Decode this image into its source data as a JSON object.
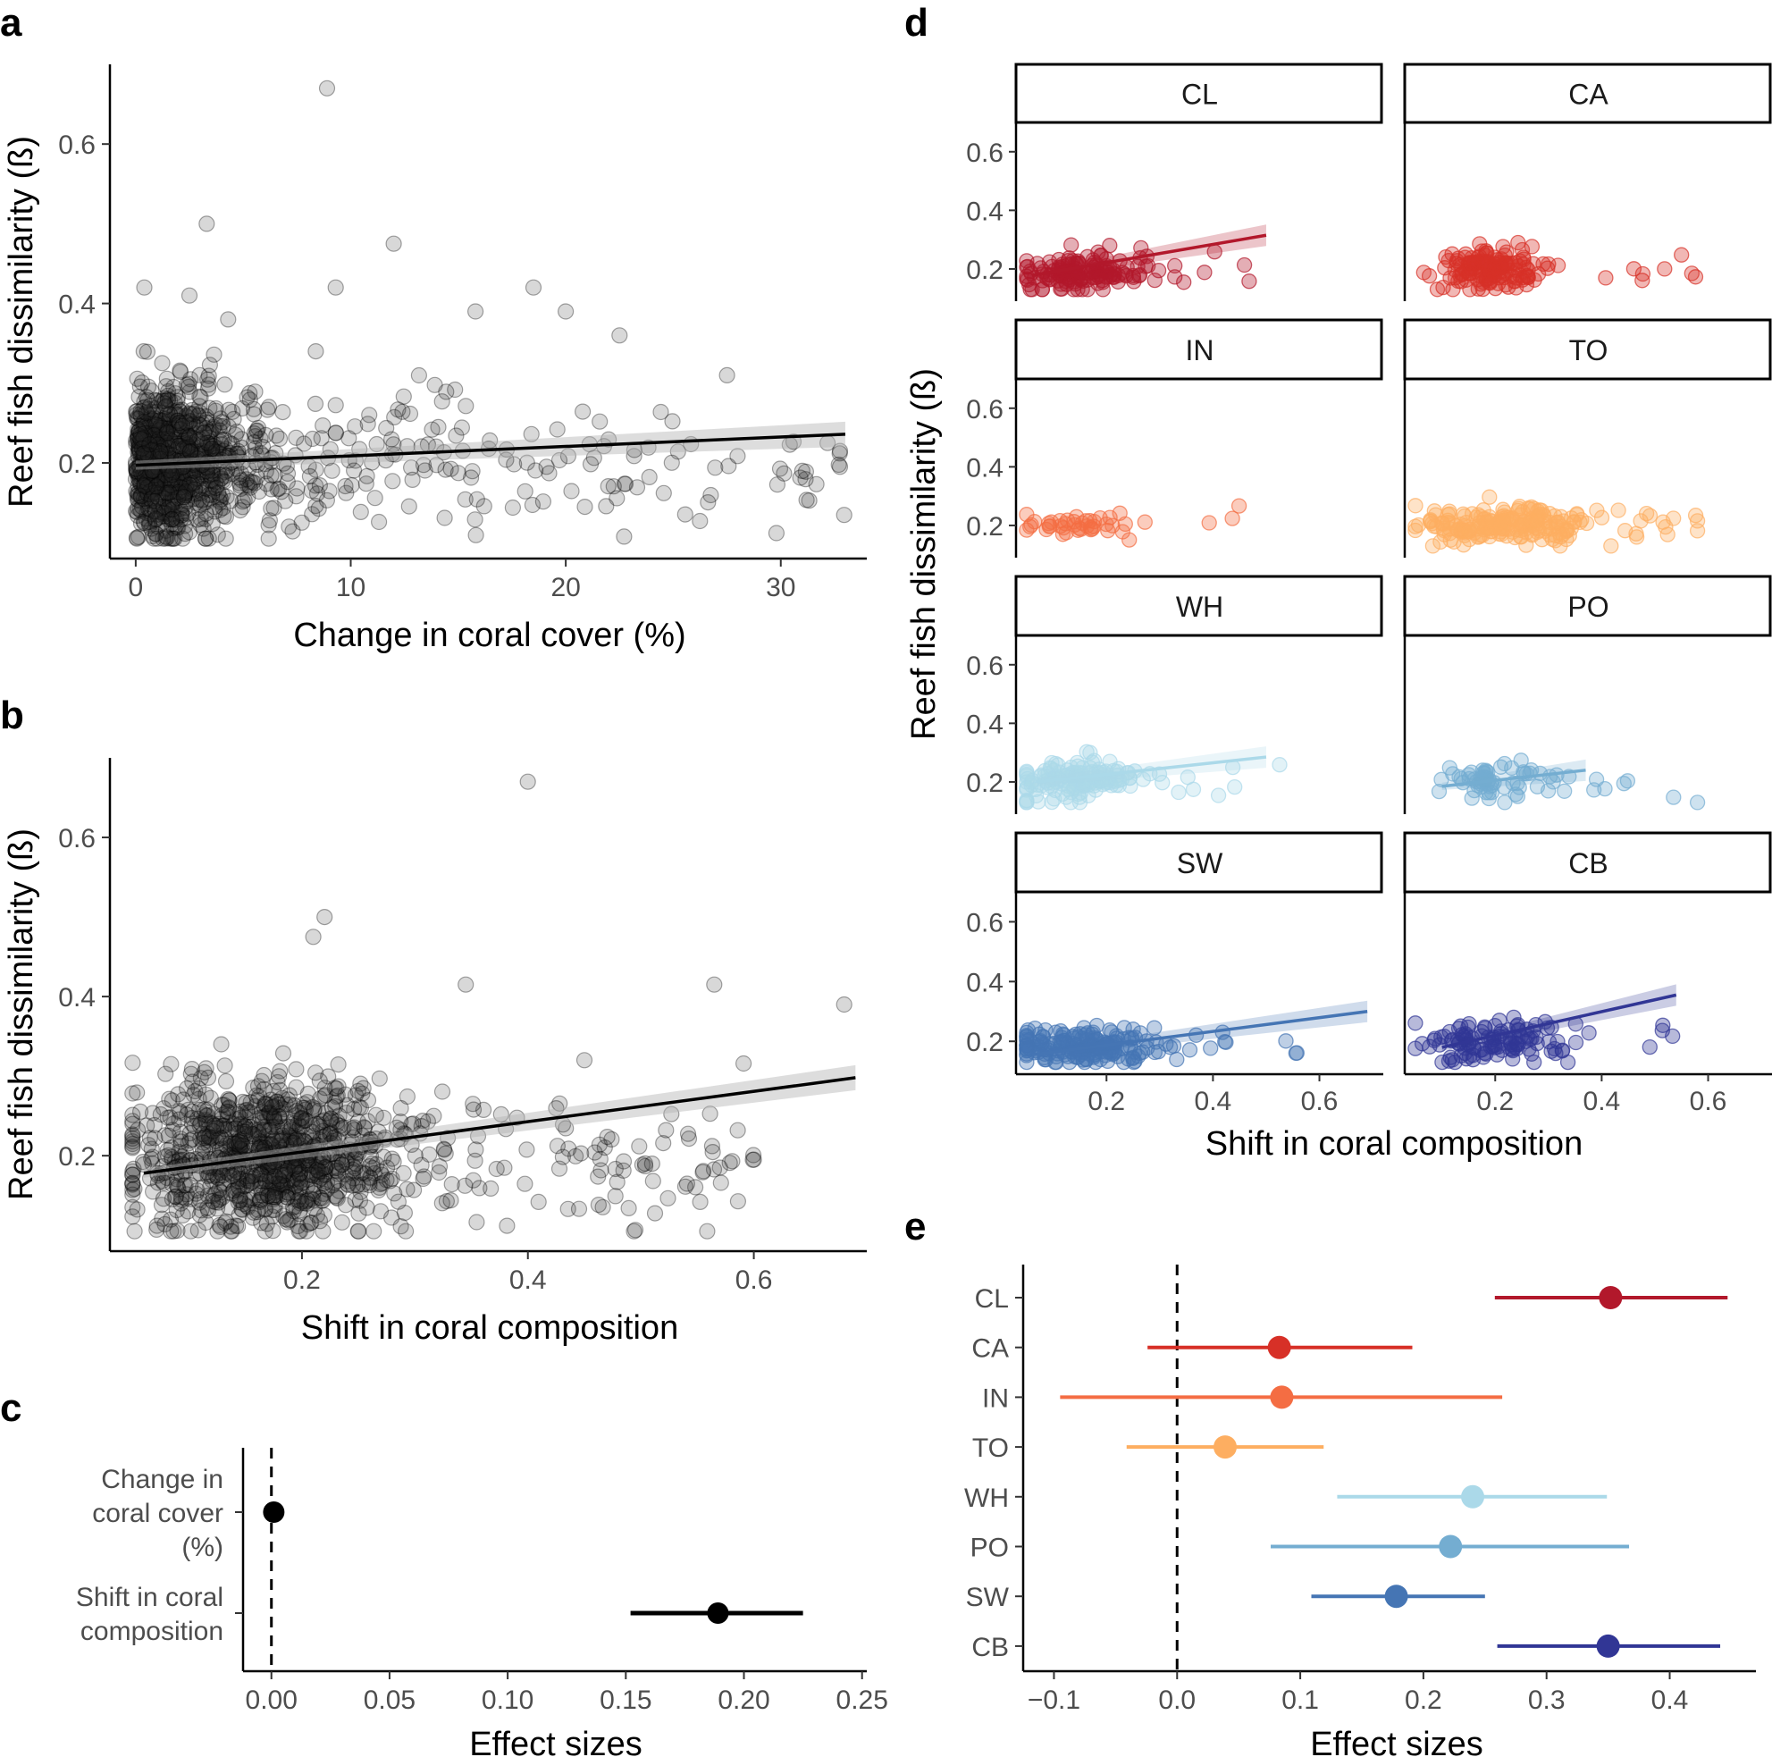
{
  "panels": {
    "a": {
      "label": "a",
      "xlabel": "Change in coral cover (%)",
      "ylabel": "Reef fish dissimilarity (ß)"
    },
    "b": {
      "label": "b",
      "xlabel": "Shift in coral composition",
      "ylabel": "Reef fish dissimilarity (ß)"
    },
    "c": {
      "label": "c",
      "xlabel": "Effect sizes"
    },
    "d": {
      "label": "d",
      "xlabel": "Shift in coral composition",
      "ylabel": "Reef fish dissimilarity (ß)"
    },
    "e": {
      "label": "e",
      "xlabel": "Effect sizes"
    }
  },
  "chart_data": [
    {
      "id": "a",
      "type": "scatter",
      "title": "a",
      "xlabel": "Change in coral cover (%)",
      "ylabel": "Reef fish dissimilarity (ß)",
      "xlim": [
        -1.2,
        34
      ],
      "ylim": [
        0.08,
        0.7
      ],
      "xticks": [
        0,
        10,
        20,
        30
      ],
      "yticks": [
        0.2,
        0.4,
        0.6
      ],
      "xtick_labels": [
        "0",
        "10",
        "20",
        "30"
      ],
      "ytick_labels": [
        "0.2",
        "0.4",
        "0.6"
      ],
      "points_seed": 11,
      "n_points": 1100,
      "x_distribution": "right-skewed, most 0-5%",
      "y_mean": 0.2,
      "y_sd": 0.045,
      "fit": {
        "x": [
          0,
          33
        ],
        "y": [
          0.197,
          0.236
        ]
      },
      "outliers": [
        [
          8.9,
          0.67
        ],
        [
          3.3,
          0.5
        ],
        [
          12,
          0.475
        ],
        [
          0.4,
          0.42
        ],
        [
          18.5,
          0.42
        ],
        [
          9.3,
          0.42
        ],
        [
          2.5,
          0.41
        ],
        [
          20,
          0.39
        ],
        [
          15.8,
          0.39
        ],
        [
          4.3,
          0.38
        ],
        [
          22.5,
          0.36
        ],
        [
          27.5,
          0.31
        ],
        [
          31,
          0.19
        ]
      ],
      "point_color": "#000000"
    },
    {
      "id": "b",
      "type": "scatter",
      "title": "b",
      "xlabel": "Shift in coral composition",
      "ylabel": "Reef fish dissimilarity (ß)",
      "xlim": [
        0.03,
        0.7
      ],
      "ylim": [
        0.08,
        0.7
      ],
      "xticks": [
        0.2,
        0.4,
        0.6
      ],
      "yticks": [
        0.2,
        0.4,
        0.6
      ],
      "xtick_labels": [
        "0.2",
        "0.4",
        "0.6"
      ],
      "ytick_labels": [
        "0.2",
        "0.4",
        "0.6"
      ],
      "points_seed": 23,
      "n_points": 1100,
      "x_mean": 0.17,
      "x_sd": 0.06,
      "y_mean": 0.2,
      "y_sd": 0.045,
      "fit": {
        "x": [
          0.06,
          0.69
        ],
        "y": [
          0.178,
          0.298
        ]
      },
      "outliers": [
        [
          0.4,
          0.67
        ],
        [
          0.22,
          0.5
        ],
        [
          0.21,
          0.475
        ],
        [
          0.565,
          0.415
        ],
        [
          0.345,
          0.415
        ],
        [
          0.68,
          0.39
        ],
        [
          0.45,
          0.32
        ],
        [
          0.6,
          0.195
        ],
        [
          0.51,
          0.19
        ],
        [
          0.57,
          0.185
        ]
      ],
      "point_color": "#000000"
    },
    {
      "id": "c",
      "type": "dot-errorbar",
      "title": "c",
      "xlabel": "Effect sizes",
      "xlim": [
        -0.012,
        0.252
      ],
      "xticks": [
        0.0,
        0.05,
        0.1,
        0.15,
        0.2,
        0.25
      ],
      "xtick_labels": [
        "0.00",
        "0.05",
        "0.10",
        "0.15",
        "0.20",
        "0.25"
      ],
      "categories": [
        [
          "Change in",
          "coral cover",
          "(%)"
        ],
        [
          "Shift in coral",
          "composition"
        ]
      ],
      "estimates": [
        0.001,
        0.189
      ],
      "lower": [
        0.0,
        0.152
      ],
      "upper": [
        0.002,
        0.225
      ],
      "reference_line": 0
    },
    {
      "id": "d",
      "type": "scatter-facets",
      "title": "d",
      "xlabel": "Shift in coral composition",
      "ylabel": "Reef fish dissimilarity (ß)",
      "xlim": [
        0.03,
        0.72
      ],
      "ylim": [
        0.09,
        0.7
      ],
      "xticks": [
        0.2,
        0.4,
        0.6
      ],
      "yticks": [
        0.2,
        0.4,
        0.6
      ],
      "xtick_labels": [
        "0.2",
        "0.4",
        "0.6"
      ],
      "ytick_labels": [
        "0.2",
        "0.4",
        "0.6"
      ],
      "facets": [
        {
          "name": "CL",
          "color": "#b2182b",
          "n": 150,
          "x_mean": 0.15,
          "x_sd": 0.07,
          "y_mean": 0.19,
          "y_sd": 0.035,
          "fit": [
            0.06,
            0.5,
            0.178,
            0.315
          ]
        },
        {
          "name": "CA",
          "color": "#d73027",
          "n": 160,
          "x_mean": 0.19,
          "x_sd": 0.05,
          "y_mean": 0.2,
          "y_sd": 0.03,
          "fit": null
        },
        {
          "name": "IN",
          "color": "#f46d43",
          "n": 45,
          "x_mean": 0.15,
          "x_sd": 0.06,
          "y_mean": 0.21,
          "y_sd": 0.025,
          "fit": null
        },
        {
          "name": "TO",
          "color": "#fdae61",
          "n": 220,
          "x_mean": 0.22,
          "x_sd": 0.08,
          "y_mean": 0.2,
          "y_sd": 0.03,
          "fit": null
        },
        {
          "name": "WH",
          "color": "#abd9e9",
          "n": 160,
          "x_mean": 0.15,
          "x_sd": 0.06,
          "y_mean": 0.21,
          "y_sd": 0.035,
          "fit": [
            0.07,
            0.5,
            0.2,
            0.285
          ]
        },
        {
          "name": "PO",
          "color": "#74add1",
          "n": 70,
          "x_mean": 0.2,
          "x_sd": 0.05,
          "y_mean": 0.2,
          "y_sd": 0.03,
          "fit": [
            0.1,
            0.37,
            0.185,
            0.24
          ]
        },
        {
          "name": "SW",
          "color": "#4575b4",
          "n": 200,
          "x_mean": 0.16,
          "x_sd": 0.07,
          "y_mean": 0.18,
          "y_sd": 0.03,
          "fit": [
            0.06,
            0.69,
            0.155,
            0.3
          ]
        },
        {
          "name": "CB",
          "color": "#313695",
          "n": 120,
          "x_mean": 0.2,
          "x_sd": 0.07,
          "y_mean": 0.2,
          "y_sd": 0.04,
          "fit": [
            0.1,
            0.54,
            0.18,
            0.355
          ]
        }
      ]
    },
    {
      "id": "e",
      "type": "dot-errorbar",
      "title": "e",
      "xlabel": "Effect sizes",
      "xlim": [
        -0.125,
        0.47
      ],
      "xticks": [
        -0.1,
        0.0,
        0.1,
        0.2,
        0.3,
        0.4
      ],
      "xtick_labels": [
        "−0.1",
        "0.0",
        "0.1",
        "0.2",
        "0.3",
        "0.4"
      ],
      "categories": [
        "CL",
        "CA",
        "IN",
        "TO",
        "WH",
        "PO",
        "SW",
        "CB"
      ],
      "estimates": [
        0.352,
        0.083,
        0.085,
        0.039,
        0.24,
        0.222,
        0.178,
        0.35
      ],
      "lower": [
        0.258,
        -0.024,
        -0.095,
        -0.041,
        0.13,
        0.076,
        0.109,
        0.26
      ],
      "upper": [
        0.447,
        0.191,
        0.264,
        0.119,
        0.349,
        0.367,
        0.25,
        0.441
      ],
      "colors": [
        "#b2182b",
        "#d73027",
        "#f46d43",
        "#fdae61",
        "#abd9e9",
        "#74add1",
        "#4575b4",
        "#313695"
      ],
      "reference_line": 0
    }
  ]
}
